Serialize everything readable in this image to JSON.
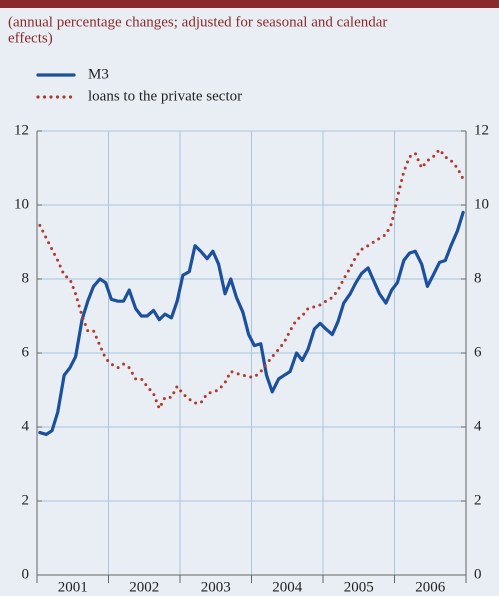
{
  "chart_data": {
    "type": "line",
    "subtitle": [
      "(annual percentage changes; adjusted for seasonal and calendar",
      "effects)"
    ],
    "x": [
      2001.04,
      2001.13,
      2001.21,
      2001.29,
      2001.38,
      2001.46,
      2001.54,
      2001.63,
      2001.71,
      2001.79,
      2001.88,
      2001.96,
      2002.04,
      2002.13,
      2002.21,
      2002.29,
      2002.38,
      2002.46,
      2002.54,
      2002.63,
      2002.71,
      2002.79,
      2002.88,
      2002.96,
      2003.04,
      2003.13,
      2003.21,
      2003.29,
      2003.38,
      2003.46,
      2003.54,
      2003.63,
      2003.71,
      2003.79,
      2003.88,
      2003.96,
      2004.04,
      2004.13,
      2004.21,
      2004.29,
      2004.38,
      2004.46,
      2004.54,
      2004.63,
      2004.71,
      2004.79,
      2004.88,
      2004.96,
      2005.04,
      2005.13,
      2005.21,
      2005.29,
      2005.38,
      2005.46,
      2005.54,
      2005.63,
      2005.71,
      2005.79,
      2005.88,
      2005.96,
      2006.04,
      2006.13,
      2006.21,
      2006.29,
      2006.38,
      2006.46,
      2006.54,
      2006.63,
      2006.71,
      2006.79,
      2006.88,
      2006.96
    ],
    "series": [
      {
        "name": "M3",
        "color": "#1c4f9c",
        "style": "solid",
        "values": [
          3.85,
          3.8,
          3.9,
          4.4,
          5.4,
          5.6,
          5.9,
          6.9,
          7.4,
          7.8,
          8.0,
          7.9,
          7.45,
          7.4,
          7.4,
          7.7,
          7.2,
          7.0,
          7.0,
          7.15,
          6.9,
          7.05,
          6.95,
          7.4,
          8.1,
          8.2,
          8.9,
          8.75,
          8.55,
          8.75,
          8.4,
          7.6,
          8.0,
          7.5,
          7.1,
          6.5,
          6.2,
          6.25,
          5.4,
          4.95,
          5.3,
          5.4,
          5.5,
          6.0,
          5.8,
          6.1,
          6.65,
          6.8,
          6.65,
          6.5,
          6.85,
          7.35,
          7.6,
          7.9,
          8.15,
          8.3,
          7.95,
          7.6,
          7.35,
          7.7,
          7.9,
          8.5,
          8.7,
          8.75,
          8.4,
          7.8,
          8.1,
          8.45,
          8.5,
          8.9,
          9.3,
          9.8
        ]
      },
      {
        "name": "loans to the private sector",
        "color": "#b03a2e",
        "style": "dotted",
        "values": [
          9.45,
          9.1,
          8.8,
          8.5,
          8.1,
          8.0,
          7.6,
          7.0,
          6.6,
          6.6,
          6.2,
          5.85,
          5.7,
          5.6,
          5.7,
          5.6,
          5.3,
          5.3,
          5.1,
          4.9,
          4.5,
          4.8,
          4.8,
          5.1,
          4.9,
          4.75,
          4.65,
          4.65,
          4.9,
          4.95,
          5.0,
          5.2,
          5.5,
          5.45,
          5.4,
          5.35,
          5.35,
          5.5,
          5.7,
          5.9,
          6.1,
          6.3,
          6.6,
          6.9,
          7.0,
          7.2,
          7.25,
          7.3,
          7.4,
          7.5,
          7.7,
          8.0,
          8.3,
          8.6,
          8.8,
          8.9,
          9.0,
          9.1,
          9.2,
          9.5,
          10.2,
          10.9,
          11.3,
          11.4,
          11.0,
          11.2,
          11.3,
          11.5,
          11.3,
          11.2,
          11.0,
          10.7
        ]
      }
    ],
    "xlim": [
      2001,
      2007
    ],
    "xticks": [
      2001,
      2002,
      2003,
      2004,
      2005,
      2006,
      2007
    ],
    "x_labels": [
      "2001",
      "2002",
      "2003",
      "2004",
      "2005",
      "2006"
    ],
    "ylim": [
      0,
      12
    ],
    "yticks": [
      0,
      2,
      4,
      6,
      8,
      10,
      12
    ],
    "grid": true
  }
}
